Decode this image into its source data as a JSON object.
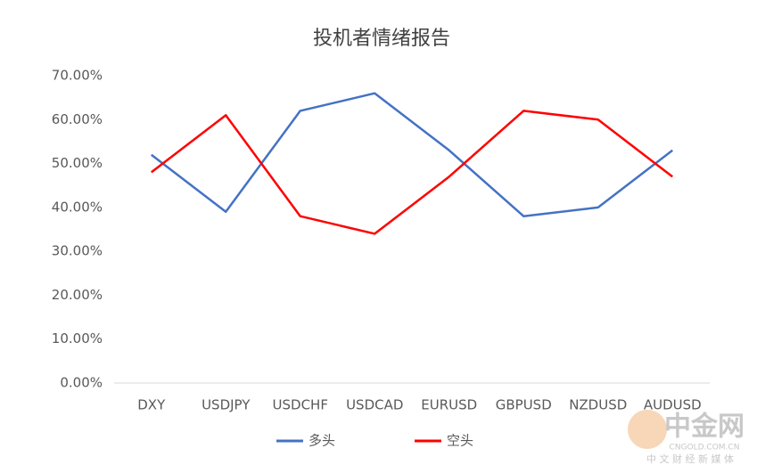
{
  "chart_data": {
    "type": "line",
    "title": "投机者情绪报告",
    "categories": [
      "DXY",
      "USDJPY",
      "USDCHF",
      "USDCAD",
      "EURUSD",
      "GBPUSD",
      "NZDUSD",
      "AUDUSD"
    ],
    "series": [
      {
        "name": "多头",
        "color": "#4472c4",
        "values": [
          52,
          39,
          62,
          66,
          53,
          38,
          40,
          53
        ]
      },
      {
        "name": "空头",
        "color": "#ff0000",
        "values": [
          48,
          61,
          38,
          34,
          47,
          62,
          60,
          47
        ]
      }
    ],
    "ylim": [
      0,
      70
    ],
    "yticks": [
      {
        "value": 0,
        "label": "0.00%"
      },
      {
        "value": 10,
        "label": "10.00%"
      },
      {
        "value": 20,
        "label": "20.00%"
      },
      {
        "value": 30,
        "label": "30.00%"
      },
      {
        "value": 40,
        "label": "40.00%"
      },
      {
        "value": 50,
        "label": "50.00%"
      },
      {
        "value": 60,
        "label": "60.00%"
      },
      {
        "value": 70,
        "label": "70.00%"
      }
    ],
    "grid": false,
    "legend": "bottom"
  },
  "watermark": {
    "brand": "中金网",
    "url": "CNGOLD.COM.CN",
    "slogan": "中 文 财 经 新 媒 体"
  }
}
